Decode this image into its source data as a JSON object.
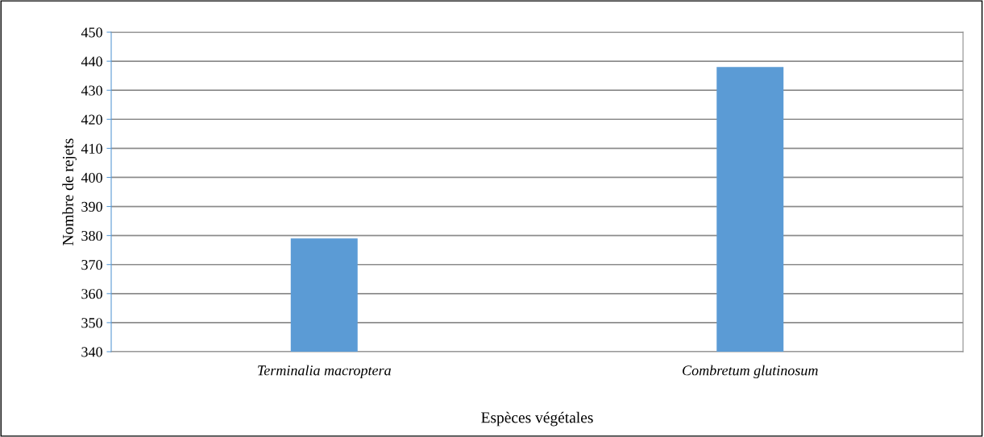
{
  "chart_data": {
    "type": "bar",
    "categories": [
      "Terminalia macroptera",
      "Combretum glutinosum"
    ],
    "values": [
      379,
      438
    ],
    "color": "#5b9bd5",
    "xlabel": "Espèces végétales",
    "ylabel": "Nombre de rejets",
    "ylim": [
      340,
      450
    ],
    "yticks": [
      340,
      350,
      360,
      370,
      380,
      390,
      400,
      410,
      420,
      430,
      440,
      450
    ],
    "grid": "y",
    "legend": false
  }
}
